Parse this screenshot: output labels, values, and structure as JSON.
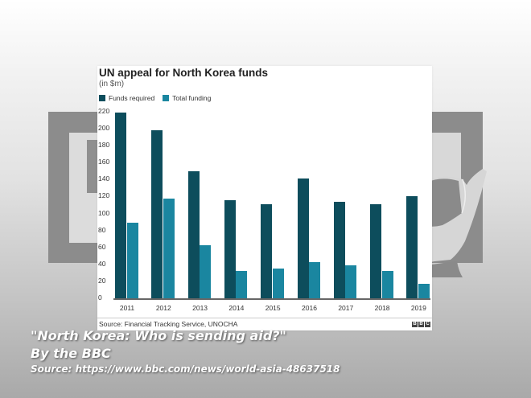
{
  "chart_data": {
    "type": "bar",
    "title": "UN appeal for North Korea funds",
    "subtitle": "(in $m)",
    "xlabel": "",
    "ylabel": "",
    "ylim": [
      0,
      220
    ],
    "yticks": [
      0,
      20,
      40,
      60,
      80,
      100,
      120,
      140,
      160,
      180,
      200,
      220
    ],
    "grid": false,
    "legend_position": "top-left",
    "categories": [
      "2011",
      "2012",
      "2013",
      "2014",
      "2015",
      "2016",
      "2017",
      "2018",
      "2019"
    ],
    "series": [
      {
        "name": "Funds required",
        "color": "#0d4d5c",
        "values": [
          219,
          198,
          150,
          116,
          111,
          141,
          114,
          111,
          120
        ]
      },
      {
        "name": "Total funding",
        "color": "#1a86a0",
        "values": [
          89,
          118,
          63,
          32,
          35,
          43,
          39,
          32,
          17
        ]
      }
    ],
    "source": "Source: Financial Tracking Service, UNOCHA",
    "logo": "BBC"
  },
  "caption": {
    "line1": "\"North Korea: Who is sending aid?\"",
    "line2": "By the BBC",
    "line3": "Source: https://www.bbc.com/news/world-asia-48637518"
  }
}
